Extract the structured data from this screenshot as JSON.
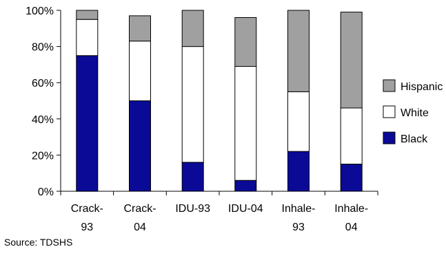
{
  "source_text": "Source: TDSHS",
  "chart_data": {
    "type": "bar",
    "stacked": true,
    "categories": [
      [
        "Crack-",
        "93"
      ],
      [
        "Crack-",
        "04"
      ],
      [
        "IDU-93"
      ],
      [
        "IDU-04"
      ],
      [
        "Inhale-",
        "93"
      ],
      [
        "Inhale-",
        "04"
      ]
    ],
    "series": [
      {
        "name": "Black",
        "color": "#0a0a96",
        "values": [
          75,
          50,
          16,
          6,
          22,
          15
        ]
      },
      {
        "name": "White",
        "color": "#ffffff",
        "values": [
          20,
          33,
          64,
          63,
          33,
          31
        ]
      },
      {
        "name": "Hispanic",
        "color": "#a0a0a0",
        "values": [
          5,
          14,
          20,
          27,
          45,
          53
        ]
      }
    ],
    "ylim": [
      0,
      100
    ],
    "yticks": [
      0,
      20,
      40,
      60,
      80,
      100
    ],
    "ytick_labels": [
      "0%",
      "20%",
      "40%",
      "60%",
      "80%",
      "100%"
    ],
    "grid": false,
    "legend_position": "right",
    "legend_order": [
      "Hispanic",
      "White",
      "Black"
    ]
  }
}
